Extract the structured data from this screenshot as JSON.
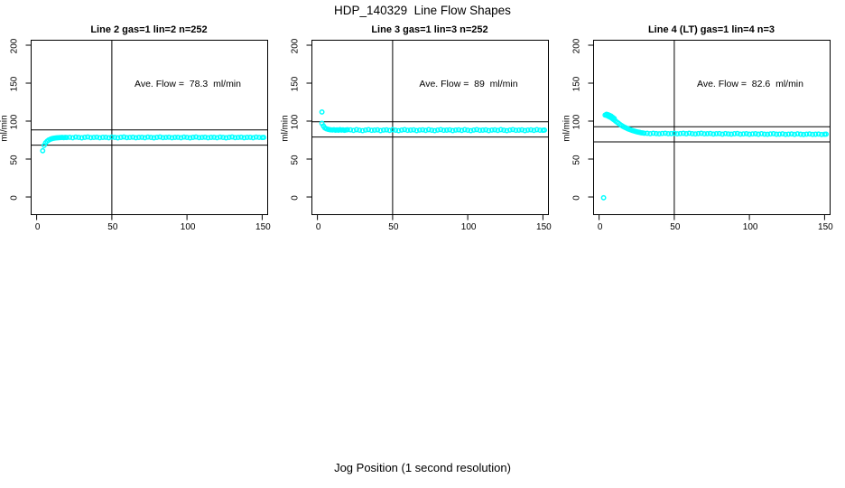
{
  "chart_data": {
    "type": "scatter",
    "title": "HDP_140329  Line Flow Shapes",
    "xlabel": "Jog Position (1 second resolution)",
    "ylabel": "ml/min",
    "x_range": [
      0,
      150
    ],
    "y_range": [
      0,
      200
    ],
    "x_ticks": [
      0,
      50,
      100,
      150
    ],
    "y_ticks": [
      0,
      50,
      100,
      150,
      200
    ],
    "grid": false,
    "legend": "none",
    "point_color": "#00ffff",
    "line_color": "#000000",
    "panels": [
      {
        "title": "Line 2 gas=1 lin=2 n=252",
        "annotation": "Ave. Flow =  78.3  ml/min",
        "ave_flow_ml_min": 78.3,
        "n": 252,
        "hlines": [
          88.3,
          68.3
        ],
        "vline": 50,
        "points": [
          [
            4,
            61.0
          ],
          [
            5,
            68.0
          ],
          [
            6,
            71.5
          ],
          [
            7,
            73.6
          ],
          [
            8,
            75.0
          ],
          [
            9,
            76.0
          ],
          [
            10,
            76.8
          ],
          [
            11,
            77.3
          ],
          [
            12,
            77.6
          ],
          [
            13,
            77.9
          ],
          [
            14,
            78.1
          ],
          [
            15,
            78.2
          ],
          [
            16,
            78.3
          ],
          [
            17,
            78.4
          ],
          [
            18,
            78.2
          ],
          [
            19,
            78.5
          ],
          [
            20,
            78.3
          ],
          [
            22,
            78.7
          ],
          [
            24,
            78.1
          ],
          [
            26,
            78.9
          ],
          [
            28,
            78.4
          ],
          [
            30,
            78.0
          ],
          [
            32,
            78.6
          ],
          [
            34,
            79.0
          ],
          [
            36,
            78.2
          ],
          [
            38,
            78.5
          ],
          [
            40,
            78.8
          ],
          [
            42,
            78.1
          ],
          [
            44,
            78.6
          ],
          [
            46,
            78.7
          ],
          [
            48,
            78.1
          ],
          [
            50,
            78.9
          ],
          [
            52,
            78.4
          ],
          [
            54,
            78.0
          ],
          [
            56,
            78.6
          ],
          [
            58,
            79.0
          ],
          [
            60,
            78.2
          ],
          [
            62,
            78.5
          ],
          [
            64,
            78.8
          ],
          [
            66,
            78.1
          ],
          [
            68,
            78.6
          ],
          [
            70,
            78.7
          ],
          [
            72,
            78.1
          ],
          [
            74,
            78.9
          ],
          [
            76,
            78.4
          ],
          [
            78,
            78.0
          ],
          [
            80,
            78.6
          ],
          [
            82,
            79.0
          ],
          [
            84,
            78.2
          ],
          [
            86,
            78.5
          ],
          [
            88,
            78.8
          ],
          [
            90,
            78.1
          ],
          [
            92,
            78.6
          ],
          [
            94,
            78.7
          ],
          [
            96,
            78.1
          ],
          [
            98,
            78.9
          ],
          [
            100,
            78.4
          ],
          [
            102,
            78.0
          ],
          [
            104,
            78.6
          ],
          [
            106,
            79.0
          ],
          [
            108,
            78.2
          ],
          [
            110,
            78.5
          ],
          [
            112,
            78.8
          ],
          [
            114,
            78.1
          ],
          [
            116,
            78.6
          ],
          [
            118,
            78.7
          ],
          [
            120,
            78.1
          ],
          [
            122,
            78.9
          ],
          [
            124,
            78.4
          ],
          [
            126,
            78.0
          ],
          [
            128,
            78.6
          ],
          [
            130,
            79.0
          ],
          [
            132,
            78.2
          ],
          [
            134,
            78.5
          ],
          [
            136,
            78.8
          ],
          [
            138,
            78.1
          ],
          [
            140,
            78.6
          ],
          [
            142,
            78.7
          ],
          [
            144,
            78.1
          ],
          [
            146,
            78.9
          ],
          [
            148,
            78.4
          ],
          [
            150,
            78.3
          ],
          [
            151,
            78.5
          ]
        ]
      },
      {
        "title": "Line 3 gas=1 lin=3 n=252",
        "annotation": "Ave. Flow =  89  ml/min",
        "ave_flow_ml_min": 89,
        "n": 252,
        "hlines": [
          99,
          79
        ],
        "vline": 50,
        "points": [
          [
            3,
            112.0
          ],
          [
            3,
            97.0
          ],
          [
            4,
            93.5
          ],
          [
            5,
            91.0
          ],
          [
            6,
            89.8
          ],
          [
            7,
            89.2
          ],
          [
            8,
            88.8
          ],
          [
            9,
            88.5
          ],
          [
            10,
            88.3
          ],
          [
            11,
            88.6
          ],
          [
            12,
            88.1
          ],
          [
            13,
            88.4
          ],
          [
            14,
            88.0
          ],
          [
            15,
            88.7
          ],
          [
            16,
            88.2
          ],
          [
            17,
            88.5
          ],
          [
            18,
            87.9
          ],
          [
            19,
            88.3
          ],
          [
            20,
            88.6
          ],
          [
            22,
            88.4
          ],
          [
            24,
            87.7
          ],
          [
            26,
            88.7
          ],
          [
            28,
            88.0
          ],
          [
            30,
            87.4
          ],
          [
            32,
            88.2
          ],
          [
            34,
            88.8
          ],
          [
            36,
            87.8
          ],
          [
            38,
            88.1
          ],
          [
            40,
            88.5
          ],
          [
            42,
            87.5
          ],
          [
            44,
            88.2
          ],
          [
            46,
            88.4
          ],
          [
            48,
            87.7
          ],
          [
            50,
            88.7
          ],
          [
            52,
            88.0
          ],
          [
            54,
            87.4
          ],
          [
            56,
            88.2
          ],
          [
            58,
            88.8
          ],
          [
            60,
            87.8
          ],
          [
            62,
            88.1
          ],
          [
            64,
            88.5
          ],
          [
            66,
            87.5
          ],
          [
            68,
            88.2
          ],
          [
            70,
            88.4
          ],
          [
            72,
            87.7
          ],
          [
            74,
            88.7
          ],
          [
            76,
            88.0
          ],
          [
            78,
            87.4
          ],
          [
            80,
            88.2
          ],
          [
            82,
            88.8
          ],
          [
            84,
            87.8
          ],
          [
            86,
            88.1
          ],
          [
            88,
            88.5
          ],
          [
            90,
            87.5
          ],
          [
            92,
            88.2
          ],
          [
            94,
            88.4
          ],
          [
            96,
            87.7
          ],
          [
            98,
            88.7
          ],
          [
            100,
            88.0
          ],
          [
            102,
            87.4
          ],
          [
            104,
            88.2
          ],
          [
            106,
            88.8
          ],
          [
            108,
            87.8
          ],
          [
            110,
            88.1
          ],
          [
            112,
            88.5
          ],
          [
            114,
            87.5
          ],
          [
            116,
            88.2
          ],
          [
            118,
            88.4
          ],
          [
            120,
            87.7
          ],
          [
            122,
            88.7
          ],
          [
            124,
            88.0
          ],
          [
            126,
            87.4
          ],
          [
            128,
            88.2
          ],
          [
            130,
            88.8
          ],
          [
            132,
            87.8
          ],
          [
            134,
            88.1
          ],
          [
            136,
            88.5
          ],
          [
            138,
            87.5
          ],
          [
            140,
            88.2
          ],
          [
            142,
            88.4
          ],
          [
            144,
            87.7
          ],
          [
            146,
            88.7
          ],
          [
            148,
            88.0
          ],
          [
            150,
            87.9
          ],
          [
            151,
            88.2
          ]
        ]
      },
      {
        "title": "Line 4 (LT) gas=1 lin=4 n=3",
        "annotation": "Ave. Flow =  82.6  ml/min",
        "ave_flow_ml_min": 82.6,
        "n": 3,
        "hlines": [
          92.6,
          72.6
        ],
        "vline": 50,
        "points": [
          [
            3,
            -1.0
          ],
          [
            4,
            108.0
          ],
          [
            5,
            107.5
          ],
          [
            5,
            109.0
          ],
          [
            6,
            106.5
          ],
          [
            6,
            108.5
          ],
          [
            7,
            105.5
          ],
          [
            7,
            107.5
          ],
          [
            8,
            104.5
          ],
          [
            8,
            106.5
          ],
          [
            9,
            103.0
          ],
          [
            9,
            105.0
          ],
          [
            10,
            101.5
          ],
          [
            10,
            103.5
          ],
          [
            11,
            100.0
          ],
          [
            12,
            98.5
          ],
          [
            13,
            97.0
          ],
          [
            14,
            95.5
          ],
          [
            15,
            94.2
          ],
          [
            16,
            93.0
          ],
          [
            17,
            91.9
          ],
          [
            18,
            90.9
          ],
          [
            19,
            90.0
          ],
          [
            20,
            89.2
          ],
          [
            21,
            88.4
          ],
          [
            22,
            87.7
          ],
          [
            23,
            87.1
          ],
          [
            24,
            86.5
          ],
          [
            25,
            86.0
          ],
          [
            26,
            85.5
          ],
          [
            27,
            85.1
          ],
          [
            28,
            84.7
          ],
          [
            29,
            84.4
          ],
          [
            30,
            84.1
          ],
          [
            32,
            83.9
          ],
          [
            34,
            83.4
          ],
          [
            36,
            84.1
          ],
          [
            38,
            83.6
          ],
          [
            40,
            83.2
          ],
          [
            42,
            83.7
          ],
          [
            44,
            84.1
          ],
          [
            46,
            83.4
          ],
          [
            48,
            83.6
          ],
          [
            50,
            83.9
          ],
          [
            52,
            83.2
          ],
          [
            54,
            83.6
          ],
          [
            56,
            83.9
          ],
          [
            58,
            83.3
          ],
          [
            60,
            84.0
          ],
          [
            62,
            83.4
          ],
          [
            64,
            83.1
          ],
          [
            66,
            83.6
          ],
          [
            68,
            83.9
          ],
          [
            70,
            83.2
          ],
          [
            72,
            83.4
          ],
          [
            74,
            83.7
          ],
          [
            76,
            83.0
          ],
          [
            78,
            83.4
          ],
          [
            80,
            83.6
          ],
          [
            82,
            82.9
          ],
          [
            84,
            83.6
          ],
          [
            86,
            83.1
          ],
          [
            88,
            82.8
          ],
          [
            90,
            83.3
          ],
          [
            92,
            83.7
          ],
          [
            94,
            82.9
          ],
          [
            96,
            83.1
          ],
          [
            98,
            83.4
          ],
          [
            100,
            82.7
          ],
          [
            102,
            83.1
          ],
          [
            104,
            83.3
          ],
          [
            106,
            82.7
          ],
          [
            108,
            83.4
          ],
          [
            110,
            82.9
          ],
          [
            112,
            82.6
          ],
          [
            114,
            83.1
          ],
          [
            116,
            83.4
          ],
          [
            118,
            82.7
          ],
          [
            120,
            82.9
          ],
          [
            122,
            83.2
          ],
          [
            124,
            82.5
          ],
          [
            126,
            82.9
          ],
          [
            128,
            83.1
          ],
          [
            130,
            82.5
          ],
          [
            132,
            83.2
          ],
          [
            134,
            82.7
          ],
          [
            136,
            82.4
          ],
          [
            138,
            82.9
          ],
          [
            140,
            83.1
          ],
          [
            142,
            82.5
          ],
          [
            144,
            82.7
          ],
          [
            146,
            83.0
          ],
          [
            148,
            82.4
          ],
          [
            150,
            82.6
          ],
          [
            151,
            82.8
          ]
        ]
      }
    ]
  }
}
